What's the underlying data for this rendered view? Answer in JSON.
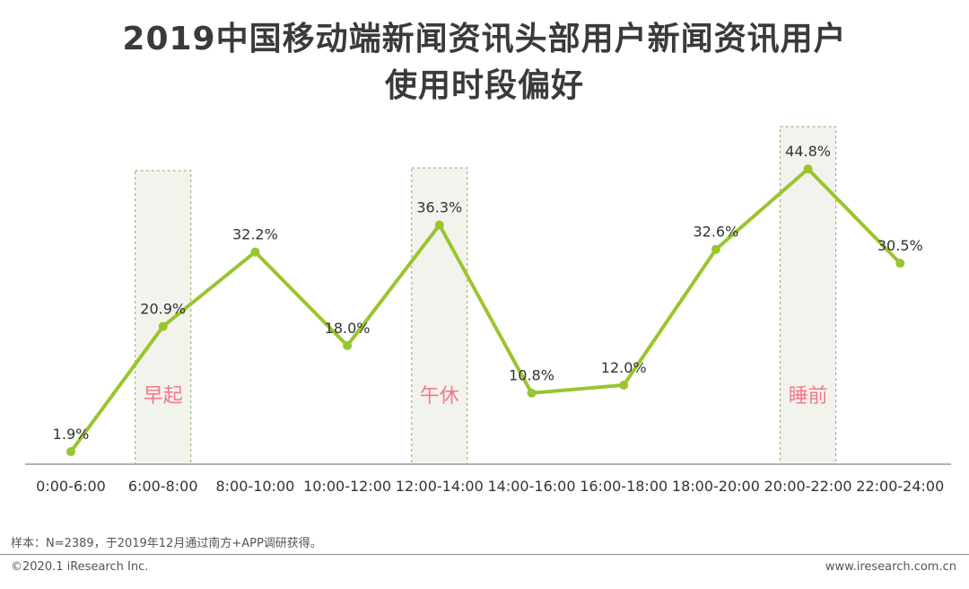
{
  "title": {
    "line1": "2019中国移动端新闻资讯头部用户新闻资讯用户",
    "line2": "使用时段偏好"
  },
  "chart_data": {
    "type": "line",
    "categories": [
      "0:00-6:00",
      "6:00-8:00",
      "8:00-10:00",
      "10:00-12:00",
      "12:00-14:00",
      "14:00-16:00",
      "16:00-18:00",
      "18:00-20:00",
      "20:00-22:00",
      "22:00-24:00"
    ],
    "values": [
      1.9,
      20.9,
      32.2,
      18.0,
      36.3,
      10.8,
      12.0,
      32.6,
      44.8,
      30.5
    ],
    "value_labels": [
      "1.9%",
      "20.9%",
      "32.2%",
      "18.0%",
      "36.3%",
      "10.8%",
      "12.0%",
      "32.6%",
      "44.8%",
      "30.5%"
    ],
    "highlights": [
      {
        "category_index": 1,
        "label": "早起"
      },
      {
        "category_index": 4,
        "label": "午休"
      },
      {
        "category_index": 8,
        "label": "睡前"
      }
    ],
    "ylim": [
      0,
      50
    ],
    "grid": false,
    "colors": {
      "line": "#9ac52e",
      "highlight_fill": "#f3f3ee",
      "highlight_border": "#8fa86a",
      "highlight_label": "#f07a8a"
    }
  },
  "footer": {
    "note": "样本：N=2389，于2019年12月通过南方+APP调研获得。",
    "copyright": "©2020.1 iResearch Inc.",
    "website": "www.iresearch.com.cn"
  }
}
